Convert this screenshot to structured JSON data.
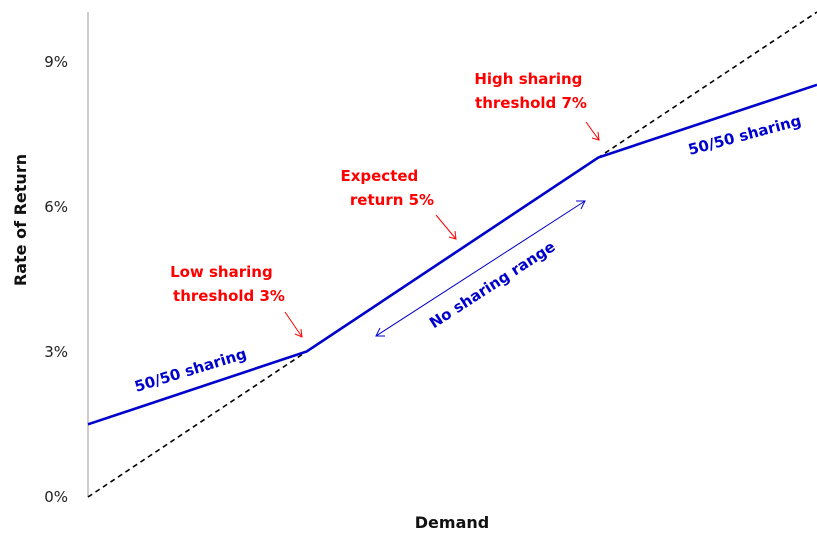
{
  "chart_data": {
    "type": "line",
    "xlabel": "Demand",
    "ylabel": "Rate of Return",
    "x": [
      0,
      3,
      7,
      10
    ],
    "ylim": [
      0,
      10
    ],
    "xlim": [
      0,
      10
    ],
    "yticks": [
      0,
      3,
      6,
      9
    ],
    "ytick_labels": [
      "0%",
      "3%",
      "6%",
      "9%"
    ],
    "series": [
      {
        "style": "solid",
        "color": "#0000cc",
        "points": [
          [
            0,
            1.5
          ],
          [
            3,
            3
          ],
          [
            7,
            7
          ],
          [
            10,
            8.5
          ]
        ]
      },
      {
        "style": "dashed",
        "color": "#000000",
        "points": [
          [
            0,
            0
          ],
          [
            10,
            10
          ]
        ]
      }
    ],
    "annotations": {
      "low_threshold": [
        "Low sharing",
        "threshold 3%"
      ],
      "expected": [
        "Expected",
        "return 5%"
      ],
      "high_threshold": [
        "High sharing",
        "threshold 7%"
      ],
      "left_sharing": "50/50 sharing",
      "right_sharing": "50/50 sharing",
      "no_sharing": "No sharing range"
    },
    "grid": false,
    "legend": "none"
  }
}
